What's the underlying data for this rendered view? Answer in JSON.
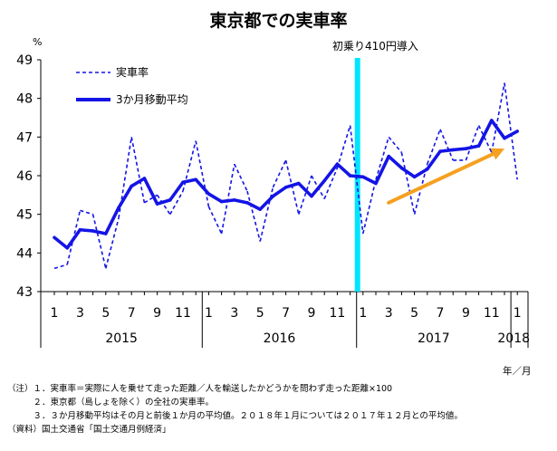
{
  "header": {
    "title": "東京都での実車率",
    "unit": "%"
  },
  "legend": {
    "dashed_label": "実車率",
    "solid_label": "3か月移動平均"
  },
  "annotation": {
    "event_label": "初乗り410円導入"
  },
  "axis": {
    "x_unit_label": "年／月"
  },
  "notes": {
    "line1": "（注）１．実車率＝実際に人を乗せて走った距離／人を輸送したかどうかを問わず走った距離×100",
    "line2": "　　　２．東京都（島しょを除く）の全社の実車率。",
    "line3": "　　　３．３か月移動平均はその月と前後１か月の平均値。２０１８年１月については２０１７年１２月との平均値。",
    "line4": "（資料）国土交通省「国土交通月例経済」"
  },
  "colors": {
    "line": "#1414e6",
    "event_bar": "#00e5ff",
    "arrow": "#f5a020"
  },
  "chart_data": {
    "type": "line",
    "title": "東京都での実車率",
    "ylabel": "%",
    "ylim": [
      43,
      49
    ],
    "yticks": [
      43,
      44,
      45,
      46,
      47,
      48,
      49
    ],
    "x_tick_labels": [
      "1",
      "3",
      "5",
      "7",
      "9",
      "11",
      "1",
      "3",
      "5",
      "7",
      "9",
      "11",
      "1",
      "3",
      "5",
      "7",
      "9",
      "11",
      "1"
    ],
    "year_labels": [
      {
        "label": "2015",
        "start_index": 0,
        "end_index": 11
      },
      {
        "label": "2016",
        "start_index": 12,
        "end_index": 23
      },
      {
        "label": "2017",
        "start_index": 24,
        "end_index": 35
      },
      {
        "label": "2018",
        "start_index": 36,
        "end_index": 36
      }
    ],
    "event": {
      "label": "初乗り410円導入",
      "between": [
        "2016-12",
        "2017-01"
      ]
    },
    "arrow": {
      "from": [
        "2017-03",
        45.3
      ],
      "to": [
        "2017-12",
        46.7
      ]
    },
    "series": [
      {
        "name": "実車率",
        "style": "dashed",
        "values": [
          43.6,
          43.7,
          45.1,
          45.0,
          43.6,
          44.9,
          47.0,
          45.3,
          45.5,
          45.0,
          45.6,
          46.9,
          45.2,
          44.5,
          46.3,
          45.6,
          44.3,
          45.7,
          46.4,
          45.0,
          46.0,
          45.4,
          46.2,
          47.3,
          44.5,
          45.9,
          47.0,
          46.6,
          45.0,
          46.3,
          47.2,
          46.4,
          46.4,
          47.3,
          46.6,
          48.4,
          45.9
        ]
      },
      {
        "name": "3か月移動平均",
        "style": "solid",
        "values": [
          44.4,
          44.13,
          44.6,
          44.57,
          44.5,
          45.17,
          45.73,
          45.93,
          45.27,
          45.37,
          45.83,
          45.9,
          45.53,
          45.33,
          45.37,
          45.3,
          45.13,
          45.47,
          45.7,
          45.8,
          45.47,
          45.87,
          46.3,
          46.0,
          45.97,
          45.8,
          46.5,
          46.2,
          45.97,
          46.17,
          46.63,
          46.67,
          46.7,
          46.77,
          47.43,
          46.97,
          47.15
        ]
      }
    ]
  }
}
